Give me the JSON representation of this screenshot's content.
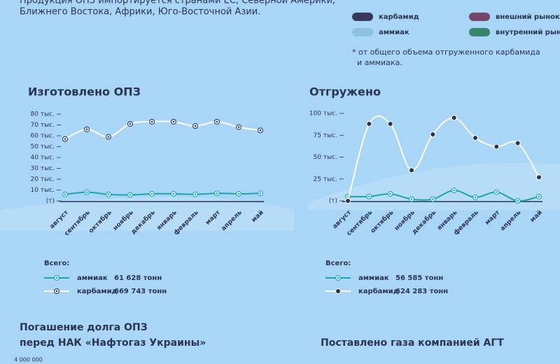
{
  "intro": [
    "Продукция ОПЗ импортируется странами ЕС, Северной Америки,",
    "Ближнего Востока, Африки, Юго-Восточной Азии."
  ],
  "legend": {
    "items": [
      {
        "name": "карбамид",
        "color": "#363a58"
      },
      {
        "name": "внешний рынок",
        "color": "#74466a"
      },
      {
        "name": "аммиак",
        "color": "#8cc3dc"
      },
      {
        "name": "внутренний рынок",
        "color": "#36866f"
      }
    ],
    "note": [
      "* от общего объема отгруженного карбамида",
      "и аммиака."
    ]
  },
  "chart_data": [
    {
      "type": "line",
      "title": "Изготовлено ОПЗ",
      "categories": [
        "август",
        "сентябрь",
        "октябрь",
        "ноябрь",
        "декабрь",
        "январь",
        "февраль",
        "март",
        "апрель",
        "май"
      ],
      "ylim": [
        0,
        80000
      ],
      "yticks": [
        {
          "value": 0,
          "label": "(т)"
        },
        {
          "value": 10000,
          "label": "10 тыс."
        },
        {
          "value": 20000,
          "label": "20 тыс."
        },
        {
          "value": 30000,
          "label": "30 тыс."
        },
        {
          "value": 40000,
          "label": "40 тыс."
        },
        {
          "value": 50000,
          "label": "50 тыс."
        },
        {
          "value": 60000,
          "label": "60 тыс."
        },
        {
          "value": 70000,
          "label": "70 тыс."
        },
        {
          "value": 80000,
          "label": "80 тыс."
        }
      ],
      "totals_label": "Всего:",
      "series": [
        {
          "name": "аммиак",
          "color": "#1ea5aa",
          "marker_color": "#1ea5aa",
          "total": "61 628 тонн",
          "values": [
            6000,
            8000,
            6000,
            5500,
            6500,
            6500,
            6000,
            7000,
            6500,
            7000
          ]
        },
        {
          "name": "карбамид",
          "color": "#ffffff",
          "marker_color": "#2d3350",
          "total": "669 743 тонн",
          "values": [
            57000,
            66000,
            59000,
            71000,
            73000,
            73000,
            69000,
            73000,
            68000,
            65000
          ]
        }
      ]
    },
    {
      "type": "line",
      "title": "Отгружено",
      "categories": [
        "август",
        "сентябрь",
        "октябрь",
        "ноябрь",
        "декабрь",
        "январь",
        "февраль",
        "март",
        "апрель",
        "май"
      ],
      "ylim": [
        0,
        100000
      ],
      "yticks": [
        {
          "value": 0,
          "label": "(т)"
        },
        {
          "value": 25000,
          "label": "25 тыс."
        },
        {
          "value": 50000,
          "label": "50 тыс."
        },
        {
          "value": 75000,
          "label": "75 тыс."
        },
        {
          "value": 100000,
          "label": "100 тыс."
        }
      ],
      "totals_label": "Всего:",
      "series": [
        {
          "name": "аммиак",
          "color": "#1ea5aa",
          "marker_color": "#1ea5aa",
          "total": "56 585 тонн",
          "values": [
            5000,
            5000,
            8000,
            2000,
            2000,
            12000,
            4000,
            10000,
            0,
            5000
          ]
        },
        {
          "name": "карбамид",
          "color": "#ffffff",
          "marker_color": "#2d3350",
          "total": "624 283 тонн",
          "values": [
            0,
            88000,
            88000,
            35000,
            76000,
            95000,
            72000,
            62000,
            66000,
            27000
          ]
        }
      ]
    }
  ],
  "debt": {
    "title": [
      "Погашение долга ОПЗ",
      "перед НАК «Нафтогаз Украины»"
    ],
    "tick": "4 000 000"
  },
  "gas": {
    "title": "Поставлено газа компанией АГТ"
  }
}
